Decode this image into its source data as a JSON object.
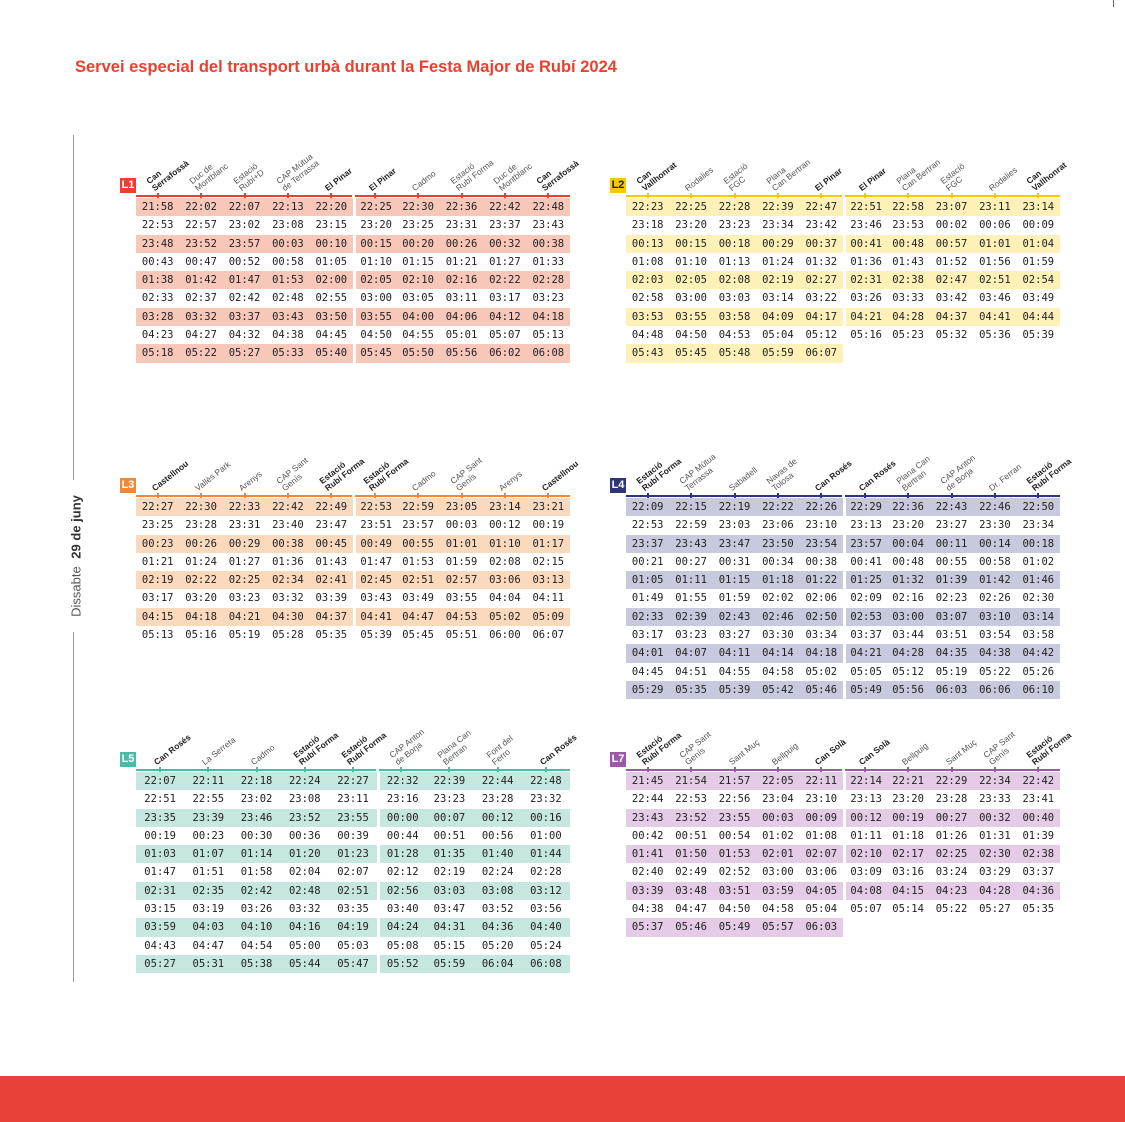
{
  "title": "Servei especial del transport urbà durant la Festa Major de Rubí 2024",
  "side_label": {
    "day": "Dissabte",
    "date": "29 de juny"
  },
  "lines": [
    {
      "id": "L1",
      "color": "#e8412f",
      "row_bg": "#f7c7b9",
      "stops": [
        "Can\nSerrafossà",
        "Duc de\nMontblanc",
        "Estació\nRubí+D",
        "CAP Mútua\nde Terrassa",
        "El Pinar",
        "El Pinar",
        "Cadmo",
        "Estació\nRubí Forma",
        "Duc de\nMontblanc",
        "Can\nSerrafossà"
      ],
      "bold_stops": [
        0,
        4,
        5,
        9
      ],
      "rows": [
        [
          "21:58",
          "22:02",
          "22:07",
          "22:13",
          "22:20",
          "22:25",
          "22:30",
          "22:36",
          "22:42",
          "22:48"
        ],
        [
          "22:53",
          "22:57",
          "23:02",
          "23:08",
          "23:15",
          "23:20",
          "23:25",
          "23:31",
          "23:37",
          "23:43"
        ],
        [
          "23:48",
          "23:52",
          "23:57",
          "00:03",
          "00:10",
          "00:15",
          "00:20",
          "00:26",
          "00:32",
          "00:38"
        ],
        [
          "00:43",
          "00:47",
          "00:52",
          "00:58",
          "01:05",
          "01:10",
          "01:15",
          "01:21",
          "01:27",
          "01:33"
        ],
        [
          "01:38",
          "01:42",
          "01:47",
          "01:53",
          "02:00",
          "02:05",
          "02:10",
          "02:16",
          "02:22",
          "02:28"
        ],
        [
          "02:33",
          "02:37",
          "02:42",
          "02:48",
          "02:55",
          "03:00",
          "03:05",
          "03:11",
          "03:17",
          "03:23"
        ],
        [
          "03:28",
          "03:32",
          "03:37",
          "03:43",
          "03:50",
          "03:55",
          "04:00",
          "04:06",
          "04:12",
          "04:18"
        ],
        [
          "04:23",
          "04:27",
          "04:32",
          "04:38",
          "04:45",
          "04:50",
          "04:55",
          "05:01",
          "05:07",
          "05:13"
        ],
        [
          "05:18",
          "05:22",
          "05:27",
          "05:33",
          "05:40",
          "05:45",
          "05:50",
          "05:56",
          "06:02",
          "06:08"
        ]
      ]
    },
    {
      "id": "L2",
      "color": "#f5c800",
      "row_bg": "#fdf1b8",
      "stops": [
        "Can\nVallhonrat",
        "Rodalies",
        "Estació\nFGC",
        "Plana\nCan Bertran",
        "El Pinar",
        "El Pinar",
        "Plana\nCan Bertran",
        "Estació\nFGC",
        "Rodalies",
        "Can\nVallhonrat"
      ],
      "bold_stops": [
        0,
        4,
        5,
        9
      ],
      "rows": [
        [
          "22:23",
          "22:25",
          "22:28",
          "22:39",
          "22:47",
          "22:51",
          "22:58",
          "23:07",
          "23:11",
          "23:14"
        ],
        [
          "23:18",
          "23:20",
          "23:23",
          "23:34",
          "23:42",
          "23:46",
          "23:53",
          "00:02",
          "00:06",
          "00:09"
        ],
        [
          "00:13",
          "00:15",
          "00:18",
          "00:29",
          "00:37",
          "00:41",
          "00:48",
          "00:57",
          "01:01",
          "01:04"
        ],
        [
          "01:08",
          "01:10",
          "01:13",
          "01:24",
          "01:32",
          "01:36",
          "01:43",
          "01:52",
          "01:56",
          "01:59"
        ],
        [
          "02:03",
          "02:05",
          "02:08",
          "02:19",
          "02:27",
          "02:31",
          "02:38",
          "02:47",
          "02:51",
          "02:54"
        ],
        [
          "02:58",
          "03:00",
          "03:03",
          "03:14",
          "03:22",
          "03:26",
          "03:33",
          "03:42",
          "03:46",
          "03:49"
        ],
        [
          "03:53",
          "03:55",
          "03:58",
          "04:09",
          "04:17",
          "04:21",
          "04:28",
          "04:37",
          "04:41",
          "04:44"
        ],
        [
          "04:48",
          "04:50",
          "04:53",
          "05:04",
          "05:12",
          "05:16",
          "05:23",
          "05:32",
          "05:36",
          "05:39"
        ],
        [
          "05:43",
          "05:45",
          "05:48",
          "05:59",
          "06:07",
          "",
          "",
          "",
          "",
          ""
        ]
      ]
    },
    {
      "id": "L3",
      "color": "#f0883a",
      "row_bg": "#fbd9bd",
      "stops": [
        "Castellnou",
        "Vallès Park",
        "Arenys",
        "CAP Sant\nGenís",
        "Estació\nRubí Forma",
        "Estació\nRubí Forma",
        "Cadmo",
        "CAP Sant\nGenís",
        "Arenys",
        "Castellnou"
      ],
      "bold_stops": [
        0,
        4,
        5,
        9
      ],
      "rows": [
        [
          "22:27",
          "22:30",
          "22:33",
          "22:42",
          "22:49",
          "22:53",
          "22:59",
          "23:05",
          "23:14",
          "23:21"
        ],
        [
          "23:25",
          "23:28",
          "23:31",
          "23:40",
          "23:47",
          "23:51",
          "23:57",
          "00:03",
          "00:12",
          "00:19"
        ],
        [
          "00:23",
          "00:26",
          "00:29",
          "00:38",
          "00:45",
          "00:49",
          "00:55",
          "01:01",
          "01:10",
          "01:17"
        ],
        [
          "01:21",
          "01:24",
          "01:27",
          "01:36",
          "01:43",
          "01:47",
          "01:53",
          "01:59",
          "02:08",
          "02:15"
        ],
        [
          "02:19",
          "02:22",
          "02:25",
          "02:34",
          "02:41",
          "02:45",
          "02:51",
          "02:57",
          "03:06",
          "03:13"
        ],
        [
          "03:17",
          "03:20",
          "03:23",
          "03:32",
          "03:39",
          "03:43",
          "03:49",
          "03:55",
          "04:04",
          "04:11"
        ],
        [
          "04:15",
          "04:18",
          "04:21",
          "04:30",
          "04:37",
          "04:41",
          "04:47",
          "04:53",
          "05:02",
          "05:09"
        ],
        [
          "05:13",
          "05:16",
          "05:19",
          "05:28",
          "05:35",
          "05:39",
          "05:45",
          "05:51",
          "06:00",
          "06:07"
        ]
      ]
    },
    {
      "id": "L4",
      "color": "#2d3679",
      "row_bg": "#c7c9dc",
      "stops": [
        "Estació\nRubí Forma",
        "CAP Mútua\nTerrassa",
        "Sabadell",
        "Navas de\nTolosa",
        "Can Rosés",
        "Can Rosés",
        "Plana Can\nBertran",
        "CAP Anton\nde Borja",
        "Dr. Ferran",
        "Estació\nRubí Forma"
      ],
      "bold_stops": [
        0,
        4,
        5,
        9
      ],
      "rows": [
        [
          "22:09",
          "22:15",
          "22:19",
          "22:22",
          "22:26",
          "22:29",
          "22:36",
          "22:43",
          "22:46",
          "22:50"
        ],
        [
          "22:53",
          "22:59",
          "23:03",
          "23:06",
          "23:10",
          "23:13",
          "23:20",
          "23:27",
          "23:30",
          "23:34"
        ],
        [
          "23:37",
          "23:43",
          "23:47",
          "23:50",
          "23:54",
          "23:57",
          "00:04",
          "00:11",
          "00:14",
          "00:18"
        ],
        [
          "00:21",
          "00:27",
          "00:31",
          "00:34",
          "00:38",
          "00:41",
          "00:48",
          "00:55",
          "00:58",
          "01:02"
        ],
        [
          "01:05",
          "01:11",
          "01:15",
          "01:18",
          "01:22",
          "01:25",
          "01:32",
          "01:39",
          "01:42",
          "01:46"
        ],
        [
          "01:49",
          "01:55",
          "01:59",
          "02:02",
          "02:06",
          "02:09",
          "02:16",
          "02:23",
          "02:26",
          "02:30"
        ],
        [
          "02:33",
          "02:39",
          "02:43",
          "02:46",
          "02:50",
          "02:53",
          "03:00",
          "03:07",
          "03:10",
          "03:14"
        ],
        [
          "03:17",
          "03:23",
          "03:27",
          "03:30",
          "03:34",
          "03:37",
          "03:44",
          "03:51",
          "03:54",
          "03:58"
        ],
        [
          "04:01",
          "04:07",
          "04:11",
          "04:14",
          "04:18",
          "04:21",
          "04:28",
          "04:35",
          "04:38",
          "04:42"
        ],
        [
          "04:45",
          "04:51",
          "04:55",
          "04:58",
          "05:02",
          "05:05",
          "05:12",
          "05:19",
          "05:22",
          "05:26"
        ],
        [
          "05:29",
          "05:35",
          "05:39",
          "05:42",
          "05:46",
          "05:49",
          "05:56",
          "06:03",
          "06:06",
          "06:10"
        ]
      ]
    },
    {
      "id": "L5",
      "color": "#4cbaa6",
      "row_bg": "#c6e7df",
      "stops": [
        "Can Rosés",
        "La Serreta",
        "Cadmo",
        "Estació\nRubí Forma",
        "Estació\nRubí Forma",
        "CAP Anton\nde Borja",
        "Plana Can\nBertran",
        "Font del\nFerro",
        "Can Rosés"
      ],
      "bold_stops": [
        0,
        3,
        4,
        8
      ],
      "rows": [
        [
          "22:07",
          "22:11",
          "22:18",
          "22:24",
          "22:27",
          "22:32",
          "22:39",
          "22:44",
          "22:48"
        ],
        [
          "22:51",
          "22:55",
          "23:02",
          "23:08",
          "23:11",
          "23:16",
          "23:23",
          "23:28",
          "23:32"
        ],
        [
          "23:35",
          "23:39",
          "23:46",
          "23:52",
          "23:55",
          "00:00",
          "00:07",
          "00:12",
          "00:16"
        ],
        [
          "00:19",
          "00:23",
          "00:30",
          "00:36",
          "00:39",
          "00:44",
          "00:51",
          "00:56",
          "01:00"
        ],
        [
          "01:03",
          "01:07",
          "01:14",
          "01:20",
          "01:23",
          "01:28",
          "01:35",
          "01:40",
          "01:44"
        ],
        [
          "01:47",
          "01:51",
          "01:58",
          "02:04",
          "02:07",
          "02:12",
          "02:19",
          "02:24",
          "02:28"
        ],
        [
          "02:31",
          "02:35",
          "02:42",
          "02:48",
          "02:51",
          "02:56",
          "03:03",
          "03:08",
          "03:12"
        ],
        [
          "03:15",
          "03:19",
          "03:26",
          "03:32",
          "03:35",
          "03:40",
          "03:47",
          "03:52",
          "03:56"
        ],
        [
          "03:59",
          "04:03",
          "04:10",
          "04:16",
          "04:19",
          "04:24",
          "04:31",
          "04:36",
          "04:40"
        ],
        [
          "04:43",
          "04:47",
          "04:54",
          "05:00",
          "05:03",
          "05:08",
          "05:15",
          "05:20",
          "05:24"
        ],
        [
          "05:27",
          "05:31",
          "05:38",
          "05:44",
          "05:47",
          "05:52",
          "05:59",
          "06:04",
          "06:08"
        ]
      ]
    },
    {
      "id": "L7",
      "color": "#9a5aa8",
      "row_bg": "#e4cbe6",
      "stops": [
        "Estació\nRubí Forma",
        "CAP Sant\nGenís",
        "Sant Muç",
        "Bellpuig",
        "Can Solà",
        "Can Solà",
        "Bellpuig",
        "Sant Muç",
        "CAP Sant\nGenís",
        "Estació\nRubí Forma"
      ],
      "bold_stops": [
        0,
        4,
        5,
        9
      ],
      "rows": [
        [
          "21:45",
          "21:54",
          "21:57",
          "22:05",
          "22:11",
          "22:14",
          "22:21",
          "22:29",
          "22:34",
          "22:42"
        ],
        [
          "22:44",
          "22:53",
          "22:56",
          "23:04",
          "23:10",
          "23:13",
          "23:20",
          "23:28",
          "23:33",
          "23:41"
        ],
        [
          "23:43",
          "23:52",
          "23:55",
          "00:03",
          "00:09",
          "00:12",
          "00:19",
          "00:27",
          "00:32",
          "00:40"
        ],
        [
          "00:42",
          "00:51",
          "00:54",
          "01:02",
          "01:08",
          "01:11",
          "01:18",
          "01:26",
          "01:31",
          "01:39"
        ],
        [
          "01:41",
          "01:50",
          "01:53",
          "02:01",
          "02:07",
          "02:10",
          "02:17",
          "02:25",
          "02:30",
          "02:38"
        ],
        [
          "02:40",
          "02:49",
          "02:52",
          "03:00",
          "03:06",
          "03:09",
          "03:16",
          "03:24",
          "03:29",
          "03:37"
        ],
        [
          "03:39",
          "03:48",
          "03:51",
          "03:59",
          "04:05",
          "04:08",
          "04:15",
          "04:23",
          "04:28",
          "04:36"
        ],
        [
          "04:38",
          "04:47",
          "04:50",
          "04:58",
          "05:04",
          "05:07",
          "05:14",
          "05:22",
          "05:27",
          "05:35"
        ],
        [
          "05:37",
          "05:46",
          "05:49",
          "05:57",
          "06:03",
          "",
          "",
          "",
          "",
          ""
        ]
      ]
    }
  ]
}
